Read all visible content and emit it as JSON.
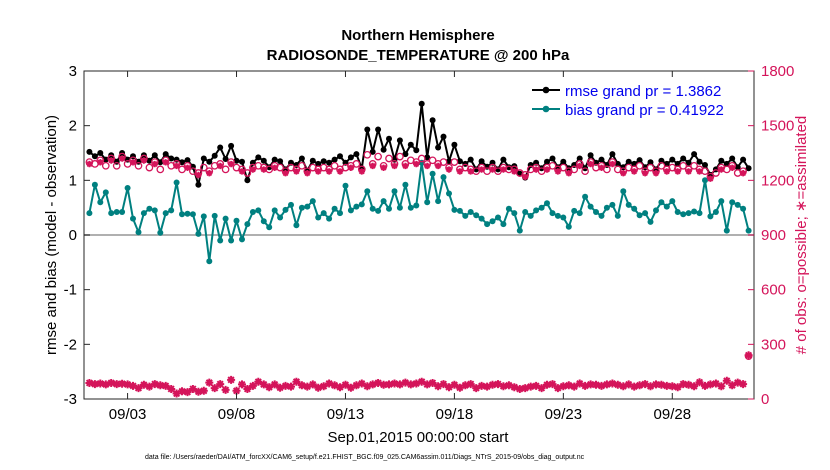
{
  "chart_data": {
    "type": "line",
    "title": "Northern Hemisphere",
    "subtitle": "RADIOSONDE_TEMPERATURE @ 200 hPa",
    "xlabel": "Sep.01,2015 00:00:00 start",
    "ylabel": "rmse and bias (model - observation)",
    "y2label": "# of obs: o=possible; ∗=assimilated",
    "footnote": "data file: /Users/raeder/DAI/ATM_forcXX/CAM6_setup/f.e21.FHIST_BGC.f09_025.CAM6assim.011/Diags_NTrS_2015-09/obs_diag_output.nc",
    "xlim": [
      1,
      31.75
    ],
    "ylim": [
      -3,
      3
    ],
    "y2lim": [
      0,
      1800
    ],
    "xticks": [
      3,
      8,
      13,
      18,
      23,
      28
    ],
    "xtick_labels": [
      "09/03",
      "09/08",
      "09/13",
      "09/18",
      "09/23",
      "09/28"
    ],
    "yticks": [
      -3,
      -2,
      -1,
      0,
      1,
      2,
      3
    ],
    "ytick_labels": [
      "-3",
      "-2",
      "-1",
      "0",
      "1",
      "2",
      "3"
    ],
    "y2ticks": [
      0,
      300,
      600,
      900,
      1200,
      1500,
      1800
    ],
    "y2tick_labels": [
      "0",
      "300",
      "600",
      "900",
      "1200",
      "1500",
      "1800"
    ],
    "x": [
      1.25,
      1.5,
      1.75,
      2.0,
      2.25,
      2.5,
      2.75,
      3.0,
      3.25,
      3.5,
      3.75,
      4.0,
      4.25,
      4.5,
      4.75,
      5.0,
      5.25,
      5.5,
      5.75,
      6.0,
      6.25,
      6.5,
      6.75,
      7.0,
      7.25,
      7.5,
      7.75,
      8.0,
      8.25,
      8.5,
      8.75,
      9.0,
      9.25,
      9.5,
      9.75,
      10.0,
      10.25,
      10.5,
      10.75,
      11.0,
      11.25,
      11.5,
      11.75,
      12.0,
      12.25,
      12.5,
      12.75,
      13.0,
      13.25,
      13.5,
      13.75,
      14.0,
      14.25,
      14.5,
      14.75,
      15.0,
      15.25,
      15.5,
      15.75,
      16.0,
      16.25,
      16.5,
      16.75,
      17.0,
      17.25,
      17.5,
      17.75,
      18.0,
      18.25,
      18.5,
      18.75,
      19.0,
      19.25,
      19.5,
      19.75,
      20.0,
      20.25,
      20.5,
      20.75,
      21.0,
      21.25,
      21.5,
      21.75,
      22.0,
      22.25,
      22.5,
      22.75,
      23.0,
      23.25,
      23.5,
      23.75,
      24.0,
      24.25,
      24.5,
      24.75,
      25.0,
      25.25,
      25.5,
      25.75,
      26.0,
      26.25,
      26.5,
      26.75,
      27.0,
      27.25,
      27.5,
      27.75,
      28.0,
      28.25,
      28.5,
      28.75,
      29.0,
      29.25,
      29.5,
      29.75,
      30.0,
      30.25,
      30.5,
      30.75,
      31.0,
      31.25,
      31.5
    ],
    "series": [
      {
        "name": "rmse grand pr = 1.3862",
        "color": "#000000",
        "axis": "left",
        "values": [
          1.52,
          1.44,
          1.5,
          1.38,
          1.46,
          1.34,
          1.5,
          1.38,
          1.44,
          1.34,
          1.46,
          1.36,
          1.46,
          1.33,
          1.48,
          1.4,
          1.38,
          1.33,
          1.37,
          1.25,
          0.92,
          1.4,
          1.34,
          1.45,
          1.6,
          1.39,
          1.63,
          1.36,
          1.34,
          1.0,
          1.32,
          1.42,
          1.36,
          1.24,
          1.38,
          1.35,
          1.2,
          1.32,
          1.28,
          1.4,
          1.18,
          1.36,
          1.3,
          1.35,
          1.32,
          1.38,
          1.44,
          1.32,
          1.42,
          1.48,
          1.22,
          1.93,
          1.52,
          1.93,
          1.56,
          1.76,
          1.38,
          1.73,
          1.48,
          1.65,
          1.55,
          2.4,
          1.42,
          2.1,
          1.6,
          1.8,
          1.35,
          1.65,
          1.35,
          1.3,
          1.38,
          1.2,
          1.35,
          1.25,
          1.32,
          1.2,
          1.38,
          1.24,
          1.26,
          1.12,
          1.05,
          1.28,
          1.32,
          1.22,
          1.34,
          1.4,
          1.24,
          1.34,
          1.22,
          1.28,
          1.4,
          1.22,
          1.46,
          1.32,
          1.38,
          1.28,
          1.48,
          1.3,
          1.24,
          1.34,
          1.3,
          1.37,
          1.24,
          1.33,
          1.2,
          1.36,
          1.3,
          1.38,
          1.3,
          1.4,
          1.32,
          1.48,
          1.34,
          1.28,
          1.1,
          1.2,
          1.36,
          1.3,
          1.4,
          1.24,
          1.38,
          1.22
        ]
      },
      {
        "name": "bias grand pr = 0.41922",
        "color": "#008080",
        "axis": "left",
        "values": [
          0.4,
          0.92,
          0.6,
          0.78,
          0.4,
          0.42,
          0.42,
          0.86,
          0.3,
          0.05,
          0.4,
          0.48,
          0.45,
          0.04,
          0.4,
          0.45,
          0.96,
          0.38,
          0.39,
          0.38,
          0.02,
          0.34,
          -0.48,
          0.35,
          -0.1,
          0.3,
          -0.1,
          0.26,
          -0.08,
          0.2,
          0.42,
          0.45,
          0.25,
          0.14,
          0.45,
          0.32,
          0.46,
          0.55,
          0.18,
          0.5,
          0.52,
          0.62,
          0.32,
          0.4,
          0.3,
          0.48,
          0.4,
          0.9,
          0.45,
          0.52,
          0.56,
          0.8,
          0.48,
          0.44,
          0.62,
          0.48,
          0.8,
          0.5,
          0.92,
          0.5,
          0.54,
          1.32,
          0.6,
          1.12,
          0.62,
          1.06,
          0.76,
          0.46,
          0.44,
          0.35,
          0.42,
          0.36,
          0.3,
          0.2,
          0.25,
          0.32,
          0.2,
          0.48,
          0.4,
          0.08,
          0.42,
          0.35,
          0.45,
          0.5,
          0.58,
          0.4,
          0.35,
          0.32,
          0.15,
          0.44,
          0.4,
          0.7,
          0.52,
          0.42,
          0.35,
          0.5,
          0.55,
          0.35,
          0.8,
          0.55,
          0.48,
          0.36,
          0.4,
          0.24,
          0.45,
          0.6,
          0.52,
          0.62,
          0.42,
          0.38,
          0.4,
          0.43,
          0.4,
          1.0,
          0.34,
          0.42,
          0.62,
          0.08,
          0.6,
          0.55,
          0.48,
          0.08
        ]
      },
      {
        "name": "observations possible",
        "color": "#d4145a",
        "axis": "right",
        "marker": "circle",
        "values": [
          1300,
          1290,
          1310,
          1280,
          1320,
          1280,
          1330,
          1290,
          1310,
          1280,
          1320,
          1270,
          1300,
          1260,
          1310,
          1280,
          1290,
          1260,
          1280,
          1250,
          1240,
          1270,
          1250,
          1280,
          1290,
          1260,
          1300,
          1270,
          1260,
          1240,
          1270,
          1280,
          1270,
          1260,
          1280,
          1270,
          1250,
          1270,
          1260,
          1280,
          1250,
          1270,
          1260,
          1270,
          1260,
          1280,
          1260,
          1270,
          1280,
          1290,
          1260,
          1340,
          1290,
          1330,
          1280,
          1320,
          1290,
          1330,
          1290,
          1310,
          1300,
          1320,
          1290,
          1310,
          1290,
          1300,
          1270,
          1300,
          1260,
          1270,
          1260,
          1250,
          1270,
          1250,
          1270,
          1250,
          1270,
          1260,
          1260,
          1240,
          1230,
          1260,
          1270,
          1250,
          1270,
          1280,
          1260,
          1270,
          1250,
          1260,
          1290,
          1250,
          1300,
          1270,
          1280,
          1260,
          1300,
          1260,
          1250,
          1270,
          1260,
          1280,
          1250,
          1270,
          1250,
          1280,
          1260,
          1270,
          1260,
          1280,
          1260,
          1280,
          1260,
          1250,
          1220,
          1240,
          1270,
          1260,
          1280,
          1240,
          1250,
          235
        ]
      },
      {
        "name": "observations assimilated",
        "color": "#d4145a",
        "axis": "right",
        "marker": "star",
        "values": [
          88,
          82,
          85,
          80,
          88,
          82,
          84,
          80,
          72,
          60,
          78,
          68,
          82,
          75,
          72,
          55,
          30,
          42,
          38,
          55,
          40,
          45,
          90,
          60,
          82,
          50,
          105,
          45,
          80,
          55,
          72,
          95,
          80,
          65,
          80,
          62,
          72,
          68,
          95,
          75,
          68,
          80,
          62,
          70,
          85,
          75,
          65,
          78,
          62,
          75,
          85,
          70,
          80,
          88,
          78,
          80,
          85,
          80,
          90,
          80,
          85,
          95,
          80,
          88,
          70,
          82,
          65,
          78,
          62,
          75,
          82,
          60,
          72,
          68,
          78,
          82,
          70,
          75,
          65,
          55,
          60,
          68,
          72,
          60,
          78,
          82,
          60,
          70,
          75,
          68,
          85,
          72,
          80,
          78,
          72,
          80,
          85,
          78,
          70,
          80,
          68,
          75,
          82,
          70,
          80,
          78,
          72,
          70,
          65,
          82,
          78,
          70,
          92,
          72,
          80,
          85,
          70,
          100,
          75,
          90,
          82,
          240
        ]
      }
    ],
    "legend": [
      {
        "label": "rmse grand pr = 1.3862",
        "color": "#000000"
      },
      {
        "label": "bias grand pr = 0.41922",
        "color": "#008080"
      }
    ],
    "legend_position": "top-right",
    "zero_line": true
  }
}
